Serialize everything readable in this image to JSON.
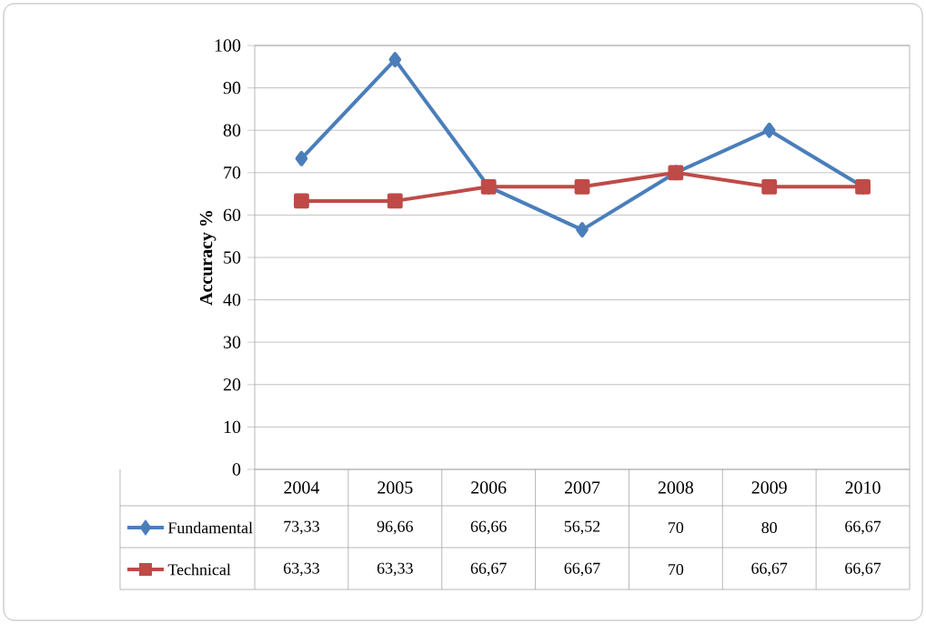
{
  "chart_data": {
    "type": "line",
    "ylabel": "Accuracy %",
    "categories": [
      "2004",
      "2005",
      "2006",
      "2007",
      "2008",
      "2009",
      "2010"
    ],
    "series": [
      {
        "name": "Fundamental",
        "color": "#4a7ebb",
        "marker": "diamond",
        "values": [
          73.33,
          96.66,
          66.66,
          56.52,
          70,
          80,
          66.67
        ],
        "value_labels": [
          "73,33",
          "96,66",
          "66,66",
          "56,52",
          "70",
          "80",
          "66,67"
        ]
      },
      {
        "name": "Technical",
        "color": "#be4b48",
        "marker": "square",
        "values": [
          63.33,
          63.33,
          66.67,
          66.67,
          70,
          66.67,
          66.67
        ],
        "value_labels": [
          "63,33",
          "63,33",
          "66,67",
          "66,67",
          "70",
          "66,67",
          "66,67"
        ]
      }
    ],
    "ylim": [
      0,
      100
    ],
    "yticks": [
      0,
      10,
      20,
      30,
      40,
      50,
      60,
      70,
      80,
      90,
      100
    ],
    "grid": "y",
    "legend": "bottom",
    "line_style": "solid"
  }
}
